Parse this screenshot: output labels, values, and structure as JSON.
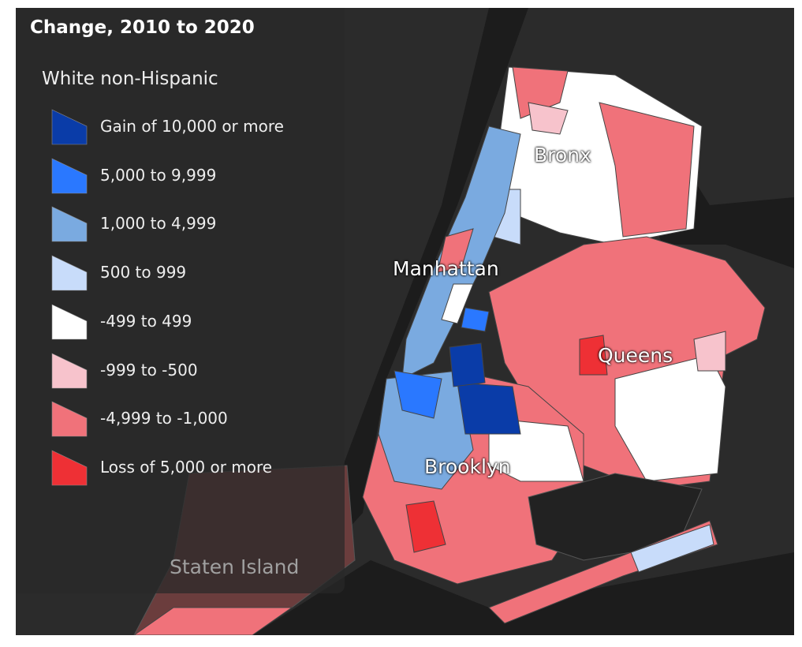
{
  "legend": {
    "title": "Change, 2010 to 2020",
    "subtitle": "White non-Hispanic",
    "items": [
      {
        "label": "Gain of 10,000 or more",
        "color": "#0a3ca8"
      },
      {
        "label": "5,000 to 9,999",
        "color": "#2a78ff"
      },
      {
        "label": "1,000 to 4,999",
        "color": "#7aaae0"
      },
      {
        "label": "500 to 999",
        "color": "#c8dcfa"
      },
      {
        "label": "-499 to 499",
        "color": "#ffffff"
      },
      {
        "label": "-999 to -500",
        "color": "#f7c3cc"
      },
      {
        "label": "-4,999 to -1,000",
        "color": "#f0727a"
      },
      {
        "label": "Loss of 5,000 or more",
        "color": "#ee3035"
      }
    ]
  },
  "boroughs": {
    "bronx": "Bronx",
    "manhattan": "Manhattan",
    "queens": "Queens",
    "brooklyn": "Brooklyn",
    "staten_island": "Staten Island"
  }
}
